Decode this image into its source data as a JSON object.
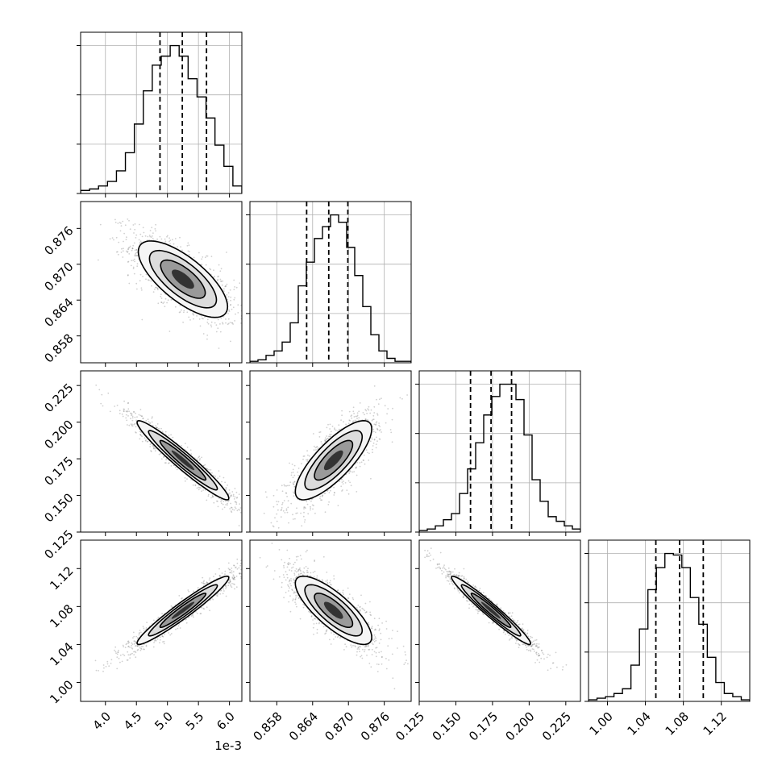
{
  "figure": {
    "offset_label": "1e-3"
  },
  "chart_data": {
    "type": "corner",
    "parameters": [
      {
        "index": 0,
        "range": [
          3.6,
          6.2
        ],
        "ticks": [
          4.0,
          4.5,
          5.0,
          5.5,
          6.0
        ],
        "tick_labels": [
          "4.0",
          "4.5",
          "5.0",
          "5.5",
          "6.0"
        ],
        "scale_factor": "1e-3"
      },
      {
        "index": 1,
        "range": [
          0.8535,
          0.8805
        ],
        "ticks": [
          0.858,
          0.864,
          0.87,
          0.876
        ],
        "tick_labels": [
          "0.858",
          "0.864",
          "0.870",
          "0.876"
        ]
      },
      {
        "index": 2,
        "range": [
          0.125,
          0.235
        ],
        "ticks": [
          0.125,
          0.15,
          0.175,
          0.2,
          0.225
        ],
        "tick_labels": [
          "0.125",
          "0.150",
          "0.175",
          "0.200",
          "0.225"
        ]
      },
      {
        "index": 3,
        "range": [
          0.98,
          1.15
        ],
        "ticks": [
          1.0,
          1.04,
          1.08,
          1.12
        ],
        "tick_labels": [
          "1.00",
          "1.04",
          "1.08",
          "1.12"
        ]
      }
    ],
    "histograms": [
      {
        "param": 0,
        "bin_edges": [
          3.6,
          6.2
        ],
        "counts": [
          2,
          3,
          5,
          8,
          15,
          27,
          46,
          68,
          85,
          91,
          98,
          91,
          76,
          64,
          50,
          32,
          18,
          5
        ],
        "quantiles": [
          4.88,
          5.24,
          5.63
        ]
      },
      {
        "param": 1,
        "bin_edges": [
          0.8535,
          0.8805
        ],
        "counts": [
          1,
          2,
          5,
          8,
          14,
          27,
          52,
          68,
          84,
          92,
          100,
          95,
          78,
          59,
          38,
          19,
          8,
          3,
          1,
          1
        ],
        "quantiles": [
          0.863,
          0.8667,
          0.8699
        ]
      },
      {
        "param": 2,
        "bin_edges": [
          0.125,
          0.235
        ],
        "counts": [
          1,
          2,
          4,
          8,
          12,
          25,
          41,
          58,
          76,
          88,
          96,
          96,
          86,
          63,
          34,
          20,
          10,
          7,
          4,
          2
        ],
        "quantiles": [
          0.16,
          0.174,
          0.188
        ]
      },
      {
        "param": 3,
        "bin_edges": [
          0.98,
          1.15
        ],
        "counts": [
          1,
          2,
          3,
          5,
          8,
          23,
          46,
          71,
          85,
          94,
          93,
          85,
          66,
          49,
          28,
          12,
          5,
          3,
          1
        ],
        "quantiles": [
          1.051,
          1.076,
          1.101
        ]
      }
    ],
    "pairs": [
      {
        "x_param": 0,
        "y_param": 1,
        "mean": [
          5.25,
          0.8675
        ],
        "sd": [
          0.36,
          0.0032
        ],
        "corr": -0.72
      },
      {
        "x_param": 0,
        "y_param": 2,
        "mean": [
          5.25,
          0.174
        ],
        "sd": [
          0.37,
          0.0135
        ],
        "corr": -0.96
      },
      {
        "x_param": 1,
        "y_param": 2,
        "mean": [
          0.8675,
          0.174
        ],
        "sd": [
          0.0032,
          0.0135
        ],
        "corr": 0.79
      },
      {
        "x_param": 0,
        "y_param": 3,
        "mean": [
          5.25,
          1.076
        ],
        "sd": [
          0.37,
          0.018
        ],
        "corr": 0.96
      },
      {
        "x_param": 1,
        "y_param": 3,
        "mean": [
          0.8675,
          1.076
        ],
        "sd": [
          0.0032,
          0.018
        ],
        "corr": -0.79
      },
      {
        "x_param": 2,
        "y_param": 3,
        "mean": [
          0.174,
          1.076
        ],
        "sd": [
          0.0135,
          0.018
        ],
        "corr": -0.97
      }
    ],
    "contour_levels": [
      0.5,
      1.0,
      1.5,
      2.0
    ],
    "grid": true,
    "colors": {
      "hist": "#000000",
      "points": "#777777",
      "contour": "#000000",
      "grid": "#b0b0b0"
    }
  }
}
